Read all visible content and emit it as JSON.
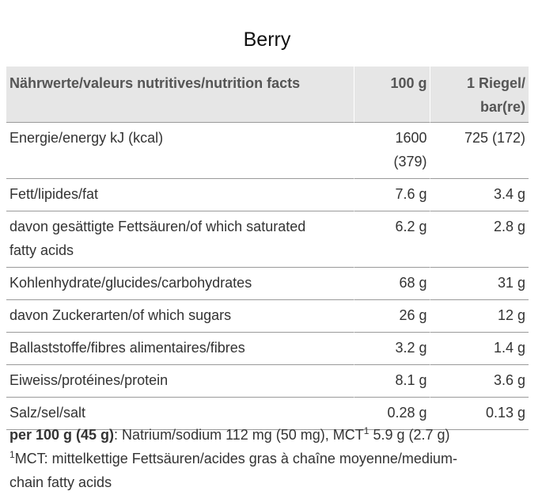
{
  "title": "Berry",
  "header": {
    "label": "Nährwerte/valeurs nutritives/nutrition facts",
    "col_100g": "100 g",
    "col_bar_line1": "1 Riegel/",
    "col_bar_line2": "bar(re)"
  },
  "rows": [
    {
      "label": "Energie/energy kJ (kcal)",
      "v100_line1": "1600",
      "v100_line2": "(379)",
      "vbar": "725 (172)"
    },
    {
      "label": "Fett/lipides/fat",
      "v100": "7.6 g",
      "vbar": "3.4 g"
    },
    {
      "label_line1": "davon gesättigte Fettsäuren/of which saturated",
      "label_line2": "fatty acids",
      "v100": "6.2 g",
      "vbar": "2.8 g"
    },
    {
      "label": "Kohlenhydrate/glucides/carbohydrates",
      "v100": "68 g",
      "vbar": "31 g"
    },
    {
      "label": "davon Zuckerarten/of which sugars",
      "v100": "26 g",
      "vbar": "12 g"
    },
    {
      "label": "Ballaststoffe/fibres alimentaires/fibres",
      "v100": "3.2 g",
      "vbar": "1.4 g"
    },
    {
      "label": "Eiweiss/protéines/protein",
      "v100": "8.1 g",
      "vbar": "3.6 g"
    },
    {
      "label": "Salz/sel/salt",
      "v100": "0.28 g",
      "vbar": "0.13 g"
    }
  ],
  "footer": {
    "bold": "per 100 g (45 g)",
    "text": ": Natrium/sodium 112 mg (50 mg), MCT",
    "sup": "1",
    "text2": " 5.9 g (2.7 g)",
    "note_sup": "1",
    "note_line1": "MCT: mittelkettige Fettsäuren/acides gras à chaîne moyenne/medium-",
    "note_line2": "chain fatty acids"
  }
}
